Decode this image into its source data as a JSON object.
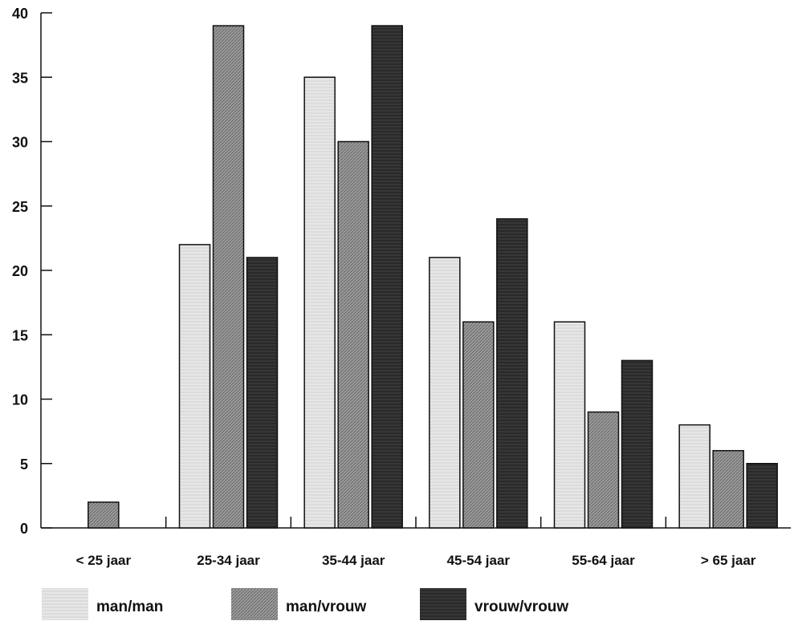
{
  "chart_data": {
    "type": "bar",
    "title": "",
    "xlabel": "",
    "ylabel": "",
    "ylim": [
      0,
      40
    ],
    "yticks": [
      0,
      5,
      10,
      15,
      20,
      25,
      30,
      35,
      40
    ],
    "grid": false,
    "legend_position": "bottom",
    "categories": [
      "< 25 jaar",
      "25-34 jaar",
      "35-44 jaar",
      "45-54 jaar",
      "55-64 jaar",
      "> 65 jaar"
    ],
    "series": [
      {
        "name": "man/man",
        "values": [
          0,
          22,
          35,
          21,
          16,
          8
        ],
        "color": "#e4e4e4"
      },
      {
        "name": "man/vrouw",
        "values": [
          2,
          39,
          30,
          16,
          9,
          6
        ],
        "color": "#8f8f8f"
      },
      {
        "name": "vrouw/vrouw",
        "values": [
          0,
          21,
          39,
          24,
          13,
          5
        ],
        "color": "#262626"
      }
    ]
  }
}
